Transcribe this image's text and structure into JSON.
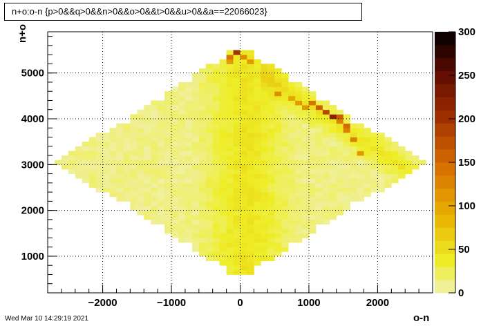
{
  "chart_data": {
    "type": "heatmap",
    "title": "n+o:o-n {p>0&&q>0&&n>0&&o>0&&t>0&&u>0&&a==22066023}",
    "xlabel": "o-n",
    "ylabel": "n+o",
    "xlim": [
      -2800,
      2800
    ],
    "ylim": [
      200,
      5900
    ],
    "xticks": [
      -2000,
      -1000,
      0,
      1000,
      2000
    ],
    "xtick_labels": [
      "−2000",
      "−1000",
      "0",
      "1000",
      "2000"
    ],
    "yticks": [
      1000,
      2000,
      3000,
      4000,
      5000
    ],
    "ytick_labels": [
      "1000",
      "2000",
      "3000",
      "4000",
      "5000"
    ],
    "zlim": [
      0,
      300
    ],
    "zticks": [
      0,
      50,
      100,
      150,
      200,
      250,
      300
    ],
    "ztick_labels": [
      "0",
      "50",
      "100",
      "150",
      "200",
      "250",
      "300"
    ],
    "grid": true,
    "bin_size": 100,
    "hot_cells": [
      {
        "x": -50,
        "y": 5550,
        "z": 300
      },
      {
        "x": -50,
        "y": 5450,
        "z": 200
      },
      {
        "x": -250,
        "y": 5350,
        "z": 150
      },
      {
        "x": -150,
        "y": 5350,
        "z": 140
      },
      {
        "x": 50,
        "y": 5350,
        "z": 120
      },
      {
        "x": -350,
        "y": 5250,
        "z": 120
      },
      {
        "x": -150,
        "y": 5250,
        "z": 110
      },
      {
        "x": 150,
        "y": 5250,
        "z": 110
      },
      {
        "x": 1050,
        "y": 4350,
        "z": 140
      },
      {
        "x": 1150,
        "y": 4250,
        "z": 160
      },
      {
        "x": 1250,
        "y": 4150,
        "z": 180
      },
      {
        "x": 1350,
        "y": 4050,
        "z": 220
      },
      {
        "x": 1450,
        "y": 4050,
        "z": 160
      },
      {
        "x": 1450,
        "y": 3950,
        "z": 130
      },
      {
        "x": 1550,
        "y": 3850,
        "z": 150
      },
      {
        "x": 1550,
        "y": 3750,
        "z": 130
      },
      {
        "x": 1650,
        "y": 3550,
        "z": 130
      },
      {
        "x": 1750,
        "y": 3250,
        "z": 110
      },
      {
        "x": 550,
        "y": 4550,
        "z": 120
      },
      {
        "x": 750,
        "y": 4450,
        "z": 100
      },
      {
        "x": 850,
        "y": 4350,
        "z": 110
      },
      {
        "x": 950,
        "y": 4250,
        "z": 110
      }
    ],
    "timestamp": "Wed Mar 10 14:29:19 2021"
  }
}
